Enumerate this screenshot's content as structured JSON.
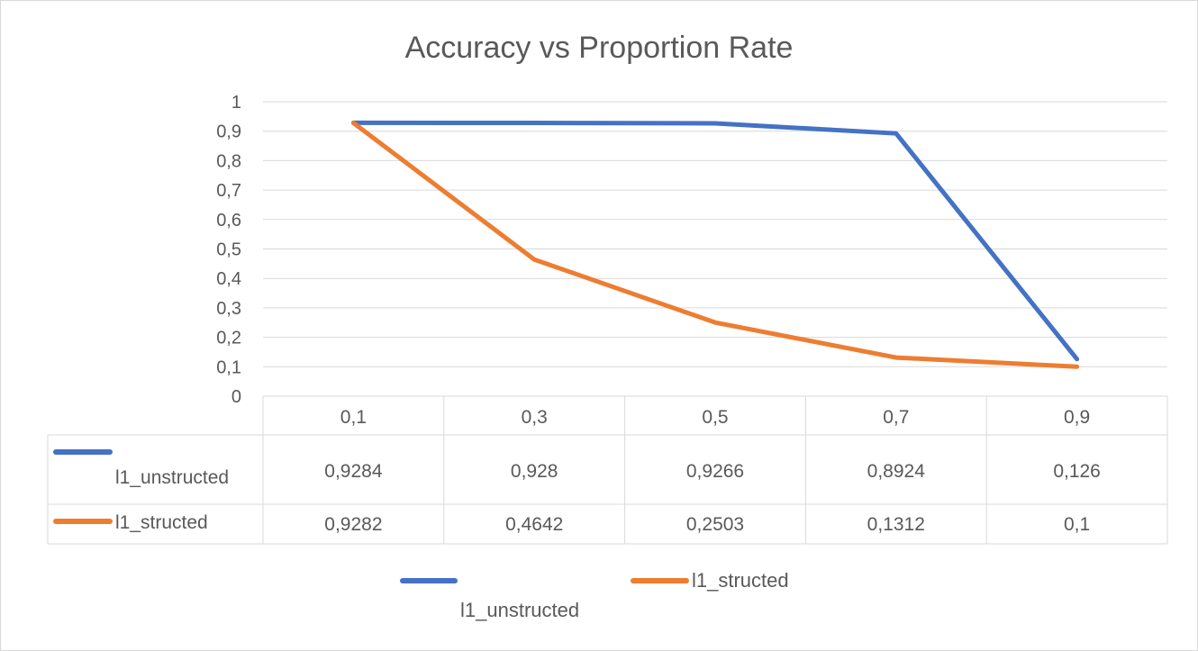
{
  "chart_data": {
    "type": "line",
    "title": "Accuracy vs Proportion Rate",
    "categories": [
      "0,1",
      "0,3",
      "0,5",
      "0,7",
      "0,9"
    ],
    "x": [
      0.1,
      0.3,
      0.5,
      0.7,
      0.9
    ],
    "ylim": [
      0,
      1
    ],
    "yticks": [
      "0",
      "0,1",
      "0,2",
      "0,3",
      "0,4",
      "0,5",
      "0,6",
      "0,7",
      "0,8",
      "0,9",
      "1"
    ],
    "grid": true,
    "legend_placement": "bottom",
    "data_table": true,
    "series": [
      {
        "name": "l1_unstructed",
        "color": "#4472C4",
        "values": [
          0.9284,
          0.928,
          0.9266,
          0.8924,
          0.126
        ],
        "value_labels": [
          "0,9284",
          "0,928",
          "0,9266",
          "0,8924",
          "0,126"
        ]
      },
      {
        "name": "l1_structed",
        "color": "#ED7D31",
        "values": [
          0.9282,
          0.4642,
          0.2503,
          0.1312,
          0.1
        ],
        "value_labels": [
          "0,9282",
          "0,4642",
          "0,2503",
          "0,1312",
          "0,1"
        ]
      }
    ]
  }
}
